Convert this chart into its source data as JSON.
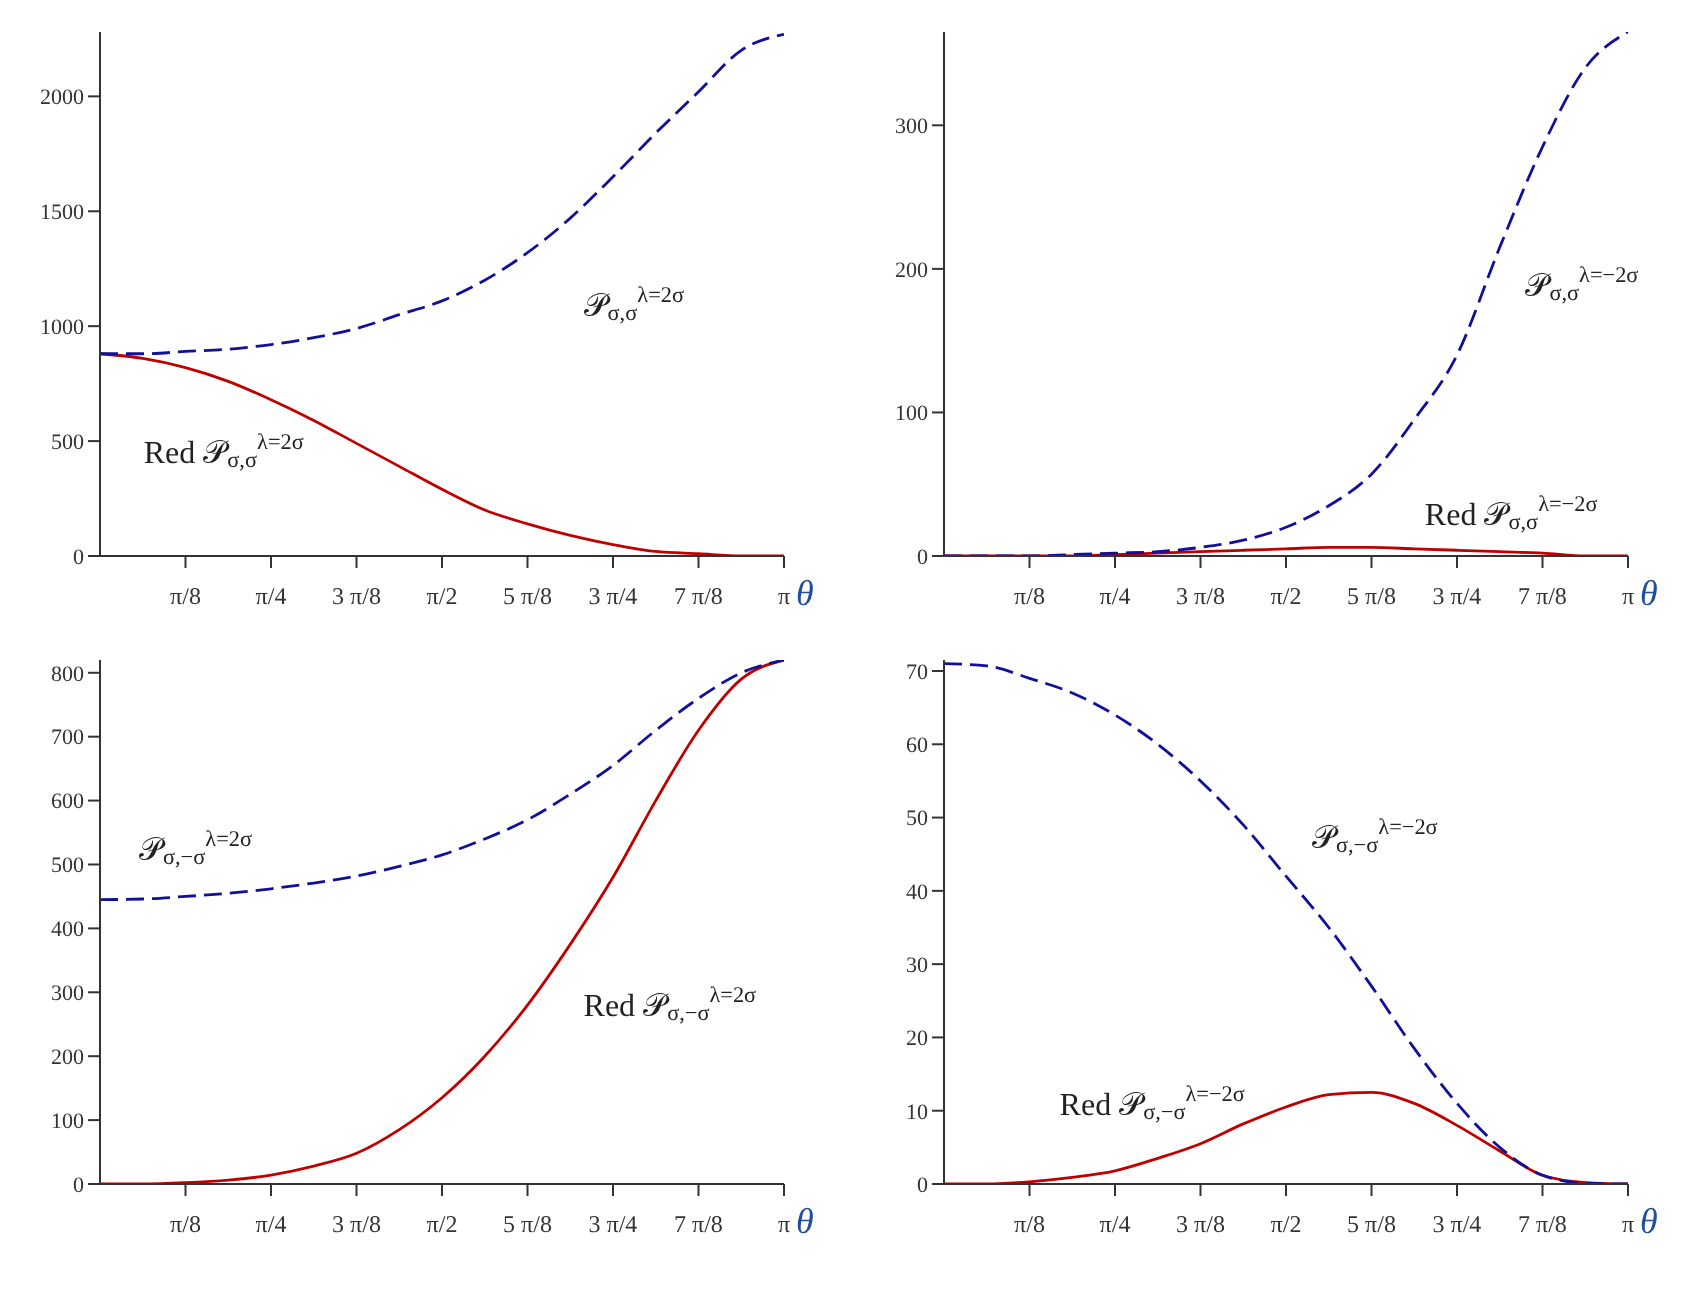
{
  "chart_data": [
    {
      "type": "line",
      "xlabel": "θ",
      "x": [
        0,
        0.19635,
        0.3927,
        0.58905,
        0.7854,
        0.98175,
        1.1781,
        1.37445,
        1.5708,
        1.76715,
        1.9635,
        2.15984,
        2.35619,
        2.55254,
        2.74889,
        2.94524,
        3.14159
      ],
      "xlim": [
        0,
        3.14159
      ],
      "xticks": [
        {
          "value": 0.3927,
          "label": "π/8"
        },
        {
          "value": 0.7854,
          "label": "π/4"
        },
        {
          "value": 1.1781,
          "label": "3 π/8"
        },
        {
          "value": 1.5708,
          "label": "π/2"
        },
        {
          "value": 1.9635,
          "label": "5 π/8"
        },
        {
          "value": 2.35619,
          "label": "3 π/4"
        },
        {
          "value": 2.74889,
          "label": "7 π/8"
        },
        {
          "value": 3.14159,
          "label": "π"
        }
      ],
      "ylim": [
        0,
        2280
      ],
      "yticks": [
        0,
        500,
        1000,
        1500,
        2000
      ],
      "grid": false,
      "legend": false,
      "series": [
        {
          "color": "#10109a",
          "line_style": "dashed",
          "values": [
            880,
            880,
            890,
            900,
            920,
            950,
            990,
            1050,
            1110,
            1200,
            1320,
            1470,
            1650,
            1840,
            2020,
            2200,
            2270
          ]
        },
        {
          "color": "#c00000",
          "line_style": "solid",
          "values": [
            880,
            860,
            820,
            760,
            680,
            590,
            490,
            390,
            290,
            200,
            140,
            90,
            50,
            20,
            10,
            0,
            0
          ]
        }
      ],
      "annotations": [
        "𝒫$_{σ,σ}$$^{λ=2σ}$",
        "Red 𝒫$_{σ,σ}$$^{λ=2σ}$"
      ]
    },
    {
      "type": "line",
      "xlabel": "θ",
      "x": [
        0,
        0.19635,
        0.3927,
        0.58905,
        0.7854,
        0.98175,
        1.1781,
        1.37445,
        1.5708,
        1.76715,
        1.9635,
        2.15984,
        2.35619,
        2.55254,
        2.74889,
        2.94524,
        3.14159
      ],
      "xlim": [
        0,
        3.14159
      ],
      "xticks": [
        {
          "value": 0.3927,
          "label": "π/8"
        },
        {
          "value": 0.7854,
          "label": "π/4"
        },
        {
          "value": 1.1781,
          "label": "3 π/8"
        },
        {
          "value": 1.5708,
          "label": "π/2"
        },
        {
          "value": 1.9635,
          "label": "5 π/8"
        },
        {
          "value": 2.35619,
          "label": "3 π/4"
        },
        {
          "value": 2.74889,
          "label": "7 π/8"
        },
        {
          "value": 3.14159,
          "label": "π"
        }
      ],
      "ylim": [
        0,
        365
      ],
      "yticks": [
        0,
        100,
        200,
        300
      ],
      "grid": false,
      "legend": false,
      "series": [
        {
          "color": "#10109a",
          "line_style": "dashed",
          "values": [
            0,
            0,
            0,
            1,
            2,
            3,
            6,
            11,
            20,
            35,
            57,
            95,
            140,
            215,
            285,
            340,
            365
          ]
        },
        {
          "color": "#c00000",
          "line_style": "solid",
          "values": [
            0,
            0,
            0,
            0,
            1,
            2,
            3,
            4,
            5,
            6,
            6,
            5,
            4,
            3,
            2,
            0,
            0
          ]
        }
      ],
      "annotations": [
        "𝒫$_{σ,σ}$$^{λ=−2σ}$",
        "Red 𝒫$_{σ,σ}$$^{λ=−2σ}$"
      ]
    },
    {
      "type": "line",
      "xlabel": "θ",
      "x": [
        0,
        0.19635,
        0.3927,
        0.58905,
        0.7854,
        0.98175,
        1.1781,
        1.37445,
        1.5708,
        1.76715,
        1.9635,
        2.15984,
        2.35619,
        2.55254,
        2.74889,
        2.94524,
        3.14159
      ],
      "xlim": [
        0,
        3.14159
      ],
      "xticks": [
        {
          "value": 0.3927,
          "label": "π/8"
        },
        {
          "value": 0.7854,
          "label": "π/4"
        },
        {
          "value": 1.1781,
          "label": "3 π/8"
        },
        {
          "value": 1.5708,
          "label": "π/2"
        },
        {
          "value": 1.9635,
          "label": "5 π/8"
        },
        {
          "value": 2.35619,
          "label": "3 π/4"
        },
        {
          "value": 2.74889,
          "label": "7 π/8"
        },
        {
          "value": 3.14159,
          "label": "π"
        }
      ],
      "ylim": [
        0,
        820
      ],
      "yticks": [
        0,
        100,
        200,
        300,
        400,
        500,
        600,
        700,
        800
      ],
      "grid": false,
      "legend": false,
      "series": [
        {
          "color": "#10109a",
          "line_style": "dashed",
          "values": [
            445,
            446,
            450,
            455,
            462,
            471,
            482,
            497,
            515,
            540,
            570,
            610,
            655,
            710,
            760,
            800,
            820
          ]
        },
        {
          "color": "#c00000",
          "line_style": "solid",
          "values": [
            0,
            0,
            2,
            6,
            14,
            28,
            48,
            85,
            135,
            200,
            280,
            375,
            480,
            600,
            710,
            790,
            820
          ]
        }
      ],
      "annotations": [
        "𝒫$_{σ,−σ}$$^{λ=2σ}$",
        "Red 𝒫$_{σ,−σ}$$^{λ=2σ}$"
      ]
    },
    {
      "type": "line",
      "xlabel": "θ",
      "x": [
        0,
        0.19635,
        0.3927,
        0.58905,
        0.7854,
        0.98175,
        1.1781,
        1.37445,
        1.5708,
        1.76715,
        1.9635,
        2.15984,
        2.35619,
        2.55254,
        2.74889,
        2.94524,
        3.14159
      ],
      "xlim": [
        0,
        3.14159
      ],
      "xticks": [
        {
          "value": 0.3927,
          "label": "π/8"
        },
        {
          "value": 0.7854,
          "label": "π/4"
        },
        {
          "value": 1.1781,
          "label": "3 π/8"
        },
        {
          "value": 1.5708,
          "label": "π/2"
        },
        {
          "value": 1.9635,
          "label": "5 π/8"
        },
        {
          "value": 2.35619,
          "label": "3 π/4"
        },
        {
          "value": 2.74889,
          "label": "7 π/8"
        },
        {
          "value": 3.14159,
          "label": "π"
        }
      ],
      "ylim": [
        0,
        71.5
      ],
      "yticks": [
        0,
        10,
        20,
        30,
        40,
        50,
        60,
        70
      ],
      "grid": false,
      "legend": false,
      "series": [
        {
          "color": "#10109a",
          "line_style": "dashed",
          "values": [
            71,
            70.7,
            69,
            67,
            64,
            60,
            55,
            49,
            42,
            35,
            27,
            18.5,
            11,
            5,
            1.2,
            0.1,
            0
          ]
        },
        {
          "color": "#c00000",
          "line_style": "solid",
          "values": [
            0,
            0,
            0.3,
            0.9,
            1.8,
            3.5,
            5.5,
            8.2,
            10.5,
            12.2,
            12.5,
            11,
            8,
            4.5,
            1.2,
            0.2,
            0
          ]
        }
      ],
      "annotations": [
        "𝒫$_{σ,−σ}$$^{λ=−2σ}$",
        "Red 𝒫$_{σ,−σ}$$^{λ=−2σ}$"
      ]
    }
  ]
}
